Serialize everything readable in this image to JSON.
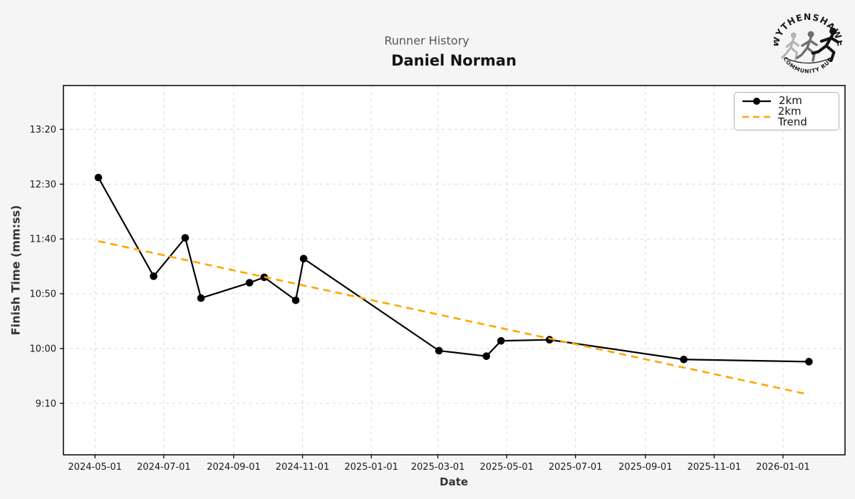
{
  "header": {
    "suptitle": "Runner History",
    "title": "Daniel Norman"
  },
  "logo": {
    "top_text": "WYTHENSHAWE",
    "bottom_text": "COMMUNITY RUN"
  },
  "chart_data": {
    "type": "line",
    "suptitle": "Runner History",
    "title": "Daniel Norman",
    "xlabel": "Date",
    "ylabel": "Finish Time (mm:ss)",
    "grid": true,
    "legend_position": "upper right",
    "xlim": [
      "2024-04-03",
      "2026-02-25"
    ],
    "ylim_seconds": [
      503,
      840
    ],
    "x_ticks": [
      "2024-05-01",
      "2024-07-01",
      "2024-09-01",
      "2024-11-01",
      "2025-01-01",
      "2025-03-01",
      "2025-05-01",
      "2025-07-01",
      "2025-09-01",
      "2025-11-01",
      "2026-01-01"
    ],
    "y_ticks": [
      "9:10",
      "10:00",
      "10:50",
      "11:40",
      "12:30",
      "13:20"
    ],
    "series": [
      {
        "name": "2km",
        "style": "solid-marker",
        "color": "#000000",
        "points": [
          {
            "date": "2024-05-04",
            "time": "12:36"
          },
          {
            "date": "2024-06-22",
            "time": "11:06"
          },
          {
            "date": "2024-07-20",
            "time": "11:41"
          },
          {
            "date": "2024-08-03",
            "time": "10:46"
          },
          {
            "date": "2024-09-15",
            "time": "11:00"
          },
          {
            "date": "2024-09-28",
            "time": "11:05"
          },
          {
            "date": "2024-10-26",
            "time": "10:44"
          },
          {
            "date": "2024-11-02",
            "time": "11:22"
          },
          {
            "date": "2025-03-02",
            "time": "9:58"
          },
          {
            "date": "2025-04-13",
            "time": "9:53"
          },
          {
            "date": "2025-04-26",
            "time": "10:07"
          },
          {
            "date": "2025-06-08",
            "time": "10:08"
          },
          {
            "date": "2025-10-05",
            "time": "9:50"
          },
          {
            "date": "2026-01-24",
            "time": "9:48"
          }
        ]
      },
      {
        "name": "2km Trend",
        "style": "dashed",
        "color": "#ffa500",
        "points": [
          {
            "date": "2024-05-04",
            "time": "11:38"
          },
          {
            "date": "2026-01-24",
            "time": "9:18"
          }
        ]
      }
    ],
    "legend": [
      {
        "label": "2km",
        "color": "#000000",
        "style": "solid-marker"
      },
      {
        "label": "2km Trend",
        "color": "#ffa500",
        "style": "dashed"
      }
    ]
  }
}
